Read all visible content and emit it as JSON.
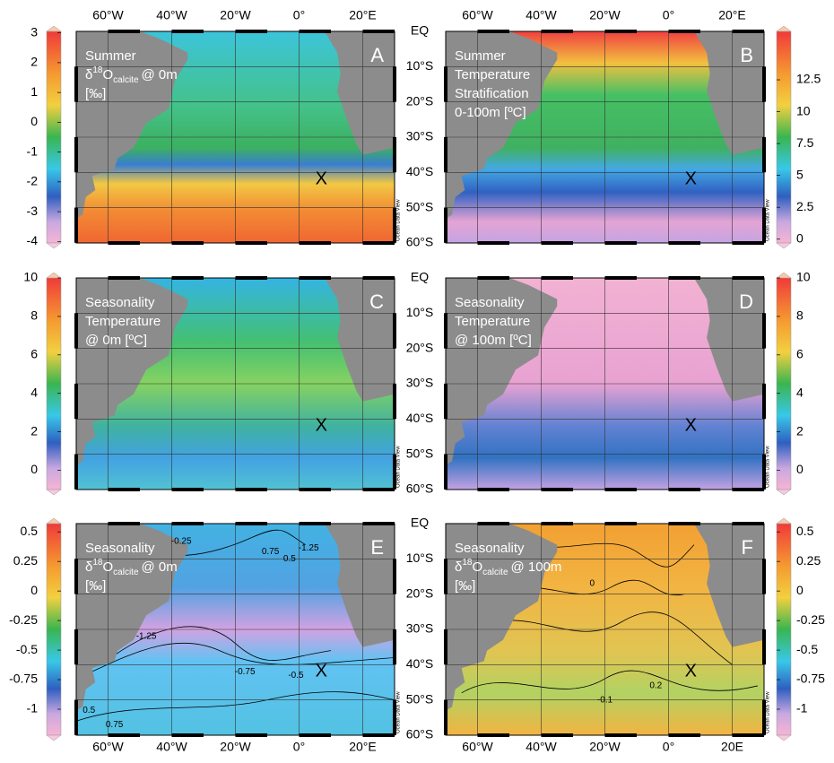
{
  "lon_labels": [
    "60°W",
    "40°W",
    "20°W",
    "0°",
    "20°E"
  ],
  "lon_labels_bottom_right": [
    "60°W",
    "40°W",
    "20°W",
    "0°",
    "20E"
  ],
  "lat_labels": [
    "EQ",
    "10°S",
    "20°S",
    "30°S",
    "40°S",
    "50°S",
    "60°S"
  ],
  "marker": "X",
  "watermark": "Ocean Data View",
  "panels": [
    {
      "letter": "A",
      "title_lines": [
        "Summer",
        {
          "pre": "δ",
          "sup": "18",
          "base": "O",
          "sub": "calcite",
          "post": "@ 0m"
        },
        "[‰]"
      ],
      "colorbar_ticks": [
        3,
        2,
        1,
        0,
        -1,
        -2,
        -3,
        -4
      ],
      "colorbar_lim": [
        -4.05,
        3.05
      ]
    },
    {
      "letter": "B",
      "title_lines": [
        "Summer",
        "Temperature",
        "Stratification",
        "0-100m [ºC]"
      ],
      "colorbar_ticks": [
        12.5,
        10,
        7.5,
        5,
        2.5,
        0
      ],
      "colorbar_lim": [
        -0.3,
        16.3
      ]
    },
    {
      "letter": "C",
      "title_lines": [
        "Seasonality",
        "Temperature",
        "@ 0m [ºC]"
      ],
      "colorbar_ticks": [
        10,
        8,
        6,
        4,
        2,
        0
      ],
      "colorbar_lim": [
        -1,
        10
      ]
    },
    {
      "letter": "D",
      "title_lines": [
        "Seasonality",
        "Temperature",
        "@ 100m [ºC]"
      ],
      "colorbar_ticks": [
        10,
        8,
        6,
        4,
        2,
        0
      ],
      "colorbar_lim": [
        -1,
        10
      ]
    },
    {
      "letter": "E",
      "title_lines": [
        "Seasonality",
        {
          "pre": "δ",
          "sup": "18",
          "base": "O",
          "sub": "calcite",
          "post": "@ 0m"
        },
        "[‰]"
      ],
      "colorbar_ticks": [
        0.5,
        0.25,
        0,
        -0.25,
        -0.5,
        -0.75,
        -1
      ],
      "colorbar_lim": [
        -1.22,
        0.57
      ],
      "contour_labels": [
        "-0.25",
        "0.75",
        "0.5",
        "-1.25",
        "-1.25",
        "-0.75",
        "-0.5",
        "0.5",
        "0.75"
      ]
    },
    {
      "letter": "F",
      "title_lines": [
        "Seasonality",
        {
          "pre": "δ",
          "sup": "18",
          "base": "O",
          "sub": "calcite",
          "post": "@ 100m"
        },
        "[‰]"
      ],
      "colorbar_ticks": [
        0.5,
        0.25,
        0,
        -0.25,
        -0.5,
        -0.75,
        -1
      ],
      "colorbar_lim": [
        -1.22,
        0.57
      ],
      "contour_labels": [
        "0",
        "-0.1",
        "0.2"
      ]
    }
  ]
}
